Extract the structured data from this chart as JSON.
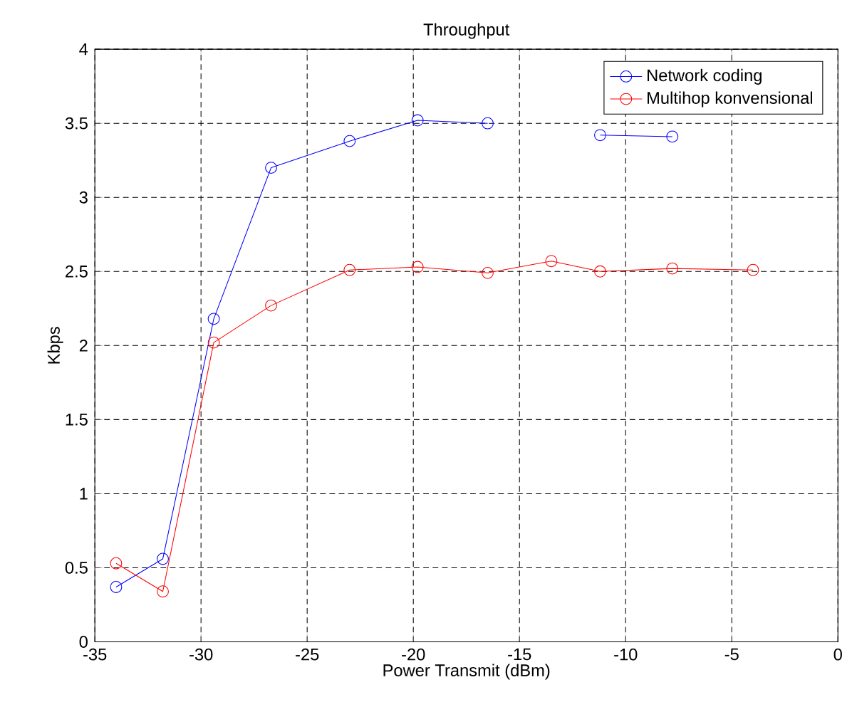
{
  "chart_data": {
    "type": "line",
    "title": "Throughput",
    "xlabel": "Power Transmit (dBm)",
    "ylabel": "Kbps",
    "x": [
      -34,
      -31.8,
      -29.4,
      -26.7,
      -23,
      -19.8,
      -16.5,
      -13.5,
      -11.2,
      -7.8,
      -4
    ],
    "series": [
      {
        "name": "Network coding",
        "color": "#0000ff",
        "values": [
          0.37,
          0.56,
          2.18,
          3.2,
          3.38,
          3.52,
          3.5,
          null,
          3.42,
          3.41,
          null
        ]
      },
      {
        "name": "Multihop konvensional",
        "color": "#ff0000",
        "values": [
          0.53,
          0.34,
          2.02,
          2.27,
          2.51,
          2.53,
          2.49,
          2.57,
          2.5,
          2.52,
          2.51
        ]
      }
    ],
    "xlim": [
      -35,
      0
    ],
    "xticks": [
      -35,
      -30,
      -25,
      -20,
      -15,
      -10,
      -5,
      0
    ],
    "ylim": [
      0,
      4
    ],
    "yticks": [
      0,
      0.5,
      1,
      1.5,
      2,
      2.5,
      3,
      3.5,
      4
    ],
    "grid": true,
    "legend": "top right",
    "marker": "circle",
    "line_style": "solid"
  }
}
